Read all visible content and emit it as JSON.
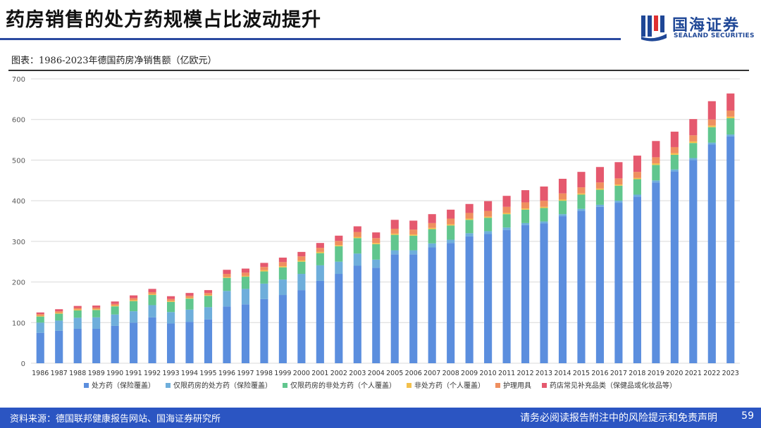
{
  "header": {
    "title": "药房销售的处方药规模占比波动提升"
  },
  "logo": {
    "name": "国海证券",
    "sub": "SEALAND SECURITIES"
  },
  "caption": "图表：1986-2023年德国药房净销售额（亿欧元）",
  "footer": {
    "source": "资料来源：德国联邦健康报告网站、国海证券研究所",
    "disclaimer": "请务必阅读报告附注中的风险提示和免责声明",
    "page": "59"
  },
  "chart_data": {
    "type": "bar",
    "stacked": true,
    "title": "1986-2023年德国药房净销售额（亿欧元）",
    "ylim": [
      0,
      700
    ],
    "yticks": [
      0,
      100,
      200,
      300,
      400,
      500,
      600,
      700
    ],
    "grid": true,
    "legend_position": "bottom",
    "categories": [
      "1986",
      "1987",
      "1988",
      "1989",
      "1990",
      "1991",
      "1992",
      "1993",
      "1994",
      "1995",
      "1996",
      "1997",
      "1998",
      "1999",
      "2000",
      "2001",
      "2002",
      "2003",
      "2004",
      "2005",
      "2006",
      "2007",
      "2008",
      "2009",
      "2010",
      "2011",
      "2012",
      "2013",
      "2014",
      "2015",
      "2016",
      "2017",
      "2018",
      "2019",
      "2020",
      "2021",
      "2022",
      "2023"
    ],
    "series": [
      {
        "name": "处方药（保险覆盖）",
        "color": "#5b8ede",
        "values": [
          75,
          80,
          85,
          85,
          92,
          100,
          113,
          98,
          102,
          108,
          140,
          145,
          158,
          168,
          180,
          203,
          220,
          240,
          235,
          268,
          268,
          285,
          296,
          312,
          318,
          328,
          340,
          344,
          362,
          375,
          385,
          395,
          410,
          445,
          472,
          500,
          538,
          558
        ]
      },
      {
        "name": "仅限药房的处方药（保险覆盖）",
        "color": "#6eaedb",
        "values": [
          25,
          25,
          27,
          28,
          28,
          28,
          30,
          28,
          30,
          30,
          38,
          38,
          38,
          38,
          40,
          38,
          30,
          30,
          20,
          10,
          10,
          10,
          8,
          8,
          7,
          6,
          5,
          5,
          5,
          5,
          5,
          5,
          5,
          5,
          5,
          5,
          5,
          5
        ]
      },
      {
        "name": "仅限药房的非处方药（个人覆盖）",
        "color": "#61c68e",
        "values": [
          15,
          17,
          18,
          18,
          20,
          25,
          25,
          25,
          27,
          28,
          32,
          30,
          30,
          30,
          30,
          30,
          38,
          38,
          38,
          38,
          36,
          35,
          35,
          33,
          33,
          33,
          33,
          33,
          33,
          35,
          37,
          37,
          38,
          38,
          36,
          37,
          38,
          40
        ]
      },
      {
        "name": "非处方药（个人覆盖）",
        "color": "#f3c04c",
        "values": [
          2,
          2,
          2,
          2,
          2,
          2,
          2,
          2,
          2,
          2,
          2,
          2,
          3,
          3,
          3,
          3,
          3,
          3,
          3,
          3,
          3,
          3,
          3,
          3,
          3,
          3,
          3,
          3,
          3,
          3,
          3,
          3,
          3,
          4,
          4,
          4,
          4,
          4
        ]
      },
      {
        "name": "护理用具",
        "color": "#ef8f5f",
        "values": [
          4,
          4,
          4,
          4,
          4,
          5,
          5,
          5,
          5,
          5,
          8,
          8,
          8,
          10,
          10,
          10,
          10,
          12,
          12,
          12,
          12,
          12,
          14,
          14,
          14,
          15,
          15,
          15,
          15,
          15,
          15,
          15,
          15,
          15,
          15,
          15,
          15,
          15
        ]
      },
      {
        "name": "药店常见补充品类（保健品或化妆品等）",
        "color": "#e5596e",
        "values": [
          4,
          5,
          5,
          5,
          6,
          7,
          8,
          7,
          7,
          7,
          10,
          10,
          10,
          11,
          11,
          12,
          13,
          14,
          14,
          22,
          22,
          22,
          22,
          22,
          24,
          27,
          30,
          35,
          36,
          38,
          38,
          40,
          40,
          40,
          38,
          40,
          45,
          42
        ]
      }
    ]
  }
}
